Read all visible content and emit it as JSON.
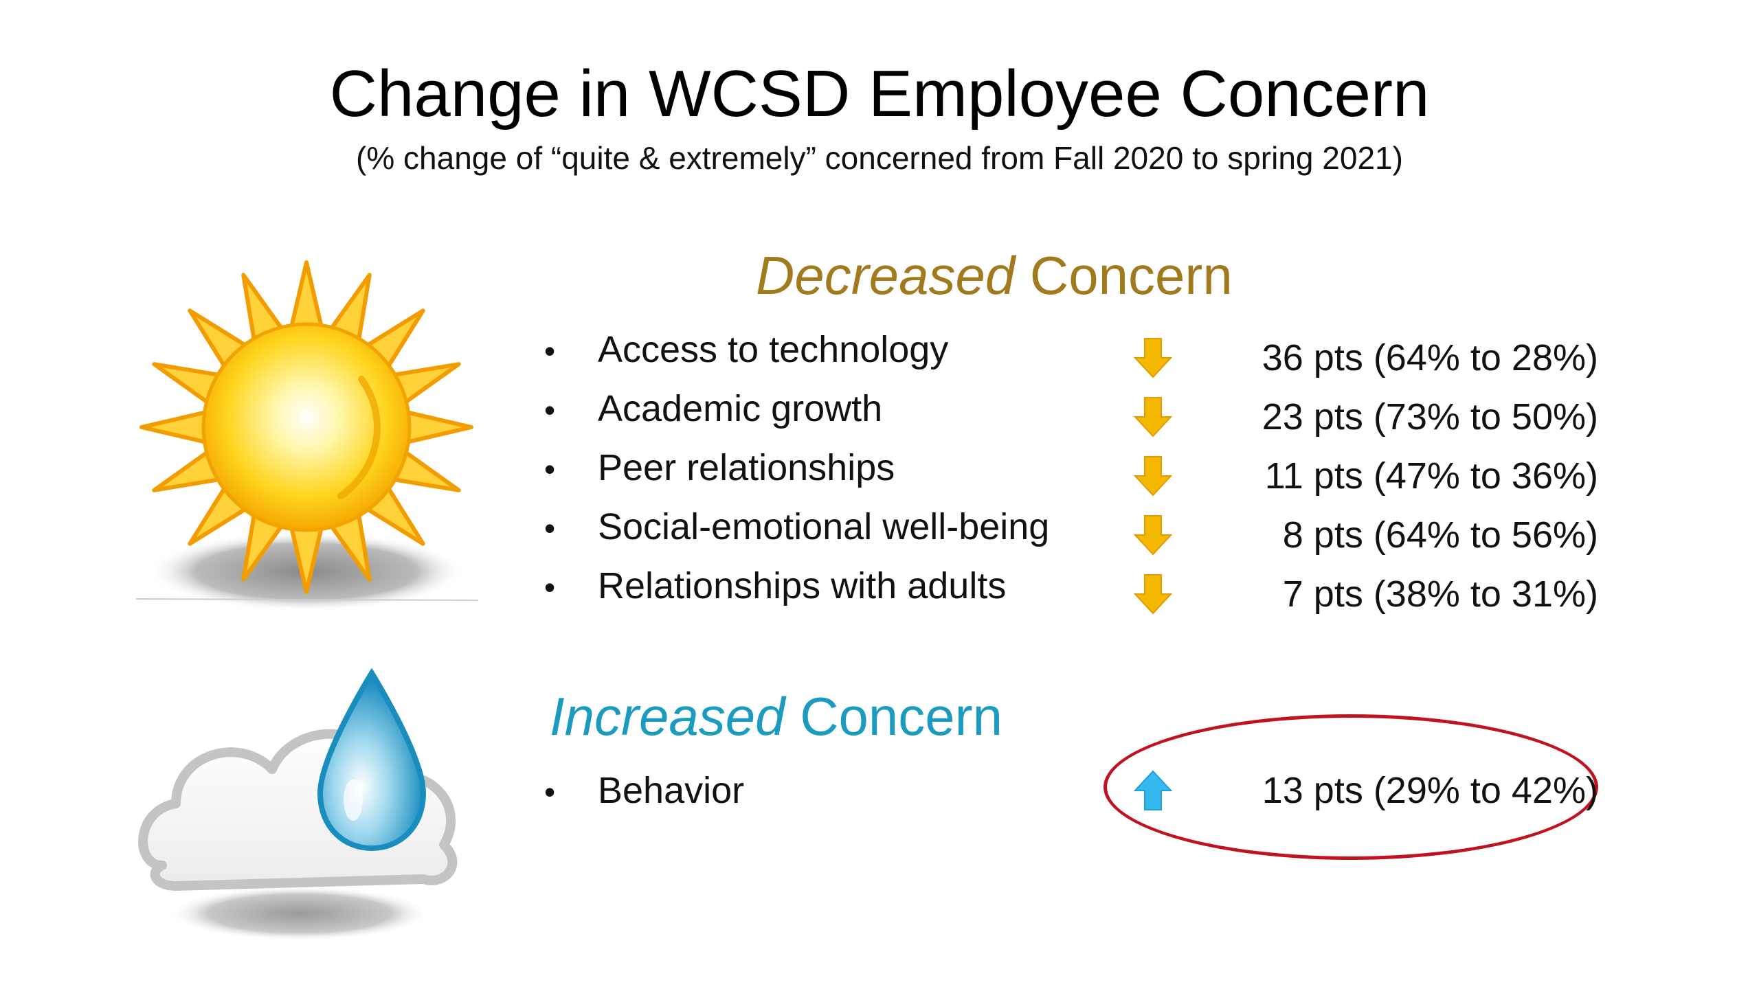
{
  "title": "Change in WCSD Employee Concern",
  "subtitle": "(% change of “quite & extremely” concerned from Fall 2020 to spring 2021)",
  "decreased": {
    "heading_em": "Decreased",
    "heading_rest": " Concern",
    "color": "#a07a1c",
    "items": [
      {
        "label": "Access to technology",
        "stat": "36 pts (64% to 28%)",
        "change_pts": 36,
        "from_pct": 64,
        "to_pct": 28
      },
      {
        "label": "Academic growth",
        "stat": "23 pts (73% to 50%)",
        "change_pts": 23,
        "from_pct": 73,
        "to_pct": 50
      },
      {
        "label": "Peer relationships",
        "stat": "11 pts (47% to 36%)",
        "change_pts": 11,
        "from_pct": 47,
        "to_pct": 36
      },
      {
        "label": "Social-emotional well-being",
        "stat": "8 pts (64% to 56%)",
        "change_pts": 8,
        "from_pct": 64,
        "to_pct": 56
      },
      {
        "label": "Relationships with adults",
        "stat": "7 pts (38% to 31%)",
        "change_pts": 7,
        "from_pct": 38,
        "to_pct": 31
      }
    ],
    "arrow_icon": "down-arrow-icon",
    "arrow_color": "#f5b800",
    "section_icon": "sun-icon"
  },
  "increased": {
    "heading_em": "Increased",
    "heading_rest": " Concern",
    "color": "#1b9bc0",
    "items": [
      {
        "label": "Behavior",
        "stat": "13 pts (29% to 42%)",
        "change_pts": 13,
        "from_pct": 29,
        "to_pct": 42
      }
    ],
    "arrow_icon": "up-arrow-icon",
    "arrow_color": "#36b9ee",
    "section_icon": "cloud-raindrop-icon",
    "highlight_color": "#c1121f"
  },
  "bullet_char": "•"
}
